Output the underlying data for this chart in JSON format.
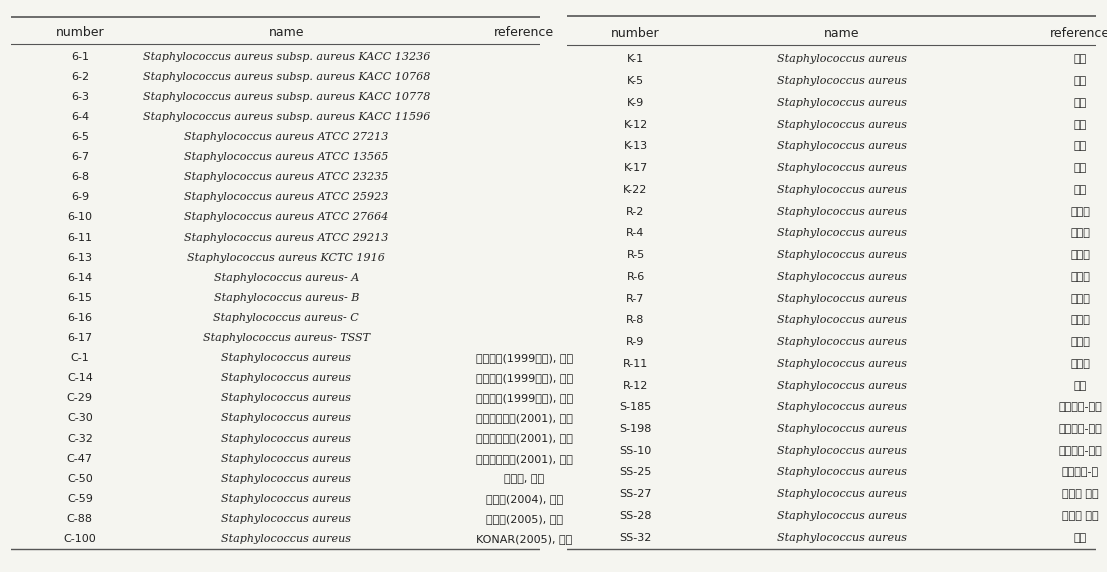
{
  "left_table": {
    "headers": [
      "number",
      "name",
      "reference"
    ],
    "rows": [
      [
        "6-1",
        "Staphylococcus aureus subsp. aureus KACC 13236",
        ""
      ],
      [
        "6-2",
        "Staphylococcus aureus subsp. aureus KACC 10768",
        ""
      ],
      [
        "6-3",
        "Staphylococcus aureus subsp. aureus KACC 10778",
        ""
      ],
      [
        "6-4",
        "Staphylococcus aureus subsp. aureus KACC 11596",
        ""
      ],
      [
        "6-5",
        "Staphylococcus aureus ATCC 27213",
        ""
      ],
      [
        "6-7",
        "Staphylococcus aureus ATCC 13565",
        ""
      ],
      [
        "6-8",
        "Staphylococcus aureus ATCC 23235",
        ""
      ],
      [
        "6-9",
        "Staphylococcus aureus ATCC 25923",
        ""
      ],
      [
        "6-10",
        "Staphylococcus aureus ATCC 27664",
        ""
      ],
      [
        "6-11",
        "Staphylococcus aureus ATCC 29213",
        ""
      ],
      [
        "6-13",
        "Staphylococcus aureus KCTC 1916",
        ""
      ],
      [
        "6-14",
        "Staphylococcus aureus- A",
        ""
      ],
      [
        "6-15",
        "Staphylococcus aureus- B",
        ""
      ],
      [
        "6-16",
        "Staphylococcus aureus- C",
        ""
      ],
      [
        "6-17",
        "Staphylococcus aureus- TSST",
        ""
      ],
      [
        "C-1",
        "Staphylococcus aureus",
        "아산준악(1999이전), 사람"
      ],
      [
        "C-14",
        "Staphylococcus aureus",
        "아산준악(1999이전), 사람"
      ],
      [
        "C-29",
        "Staphylococcus aureus",
        "아산준악(1999이전), 사람"
      ],
      [
        "C-30",
        "Staphylococcus aureus",
        "구루고대병원(2001), 사람"
      ],
      [
        "C-32",
        "Staphylococcus aureus",
        "구루고대병원(2001), 사람"
      ],
      [
        "C-47",
        "Staphylococcus aureus",
        "구루고대병원(2001), 사람"
      ],
      [
        "C-50",
        "Staphylococcus aureus",
        "전록대, 들를"
      ],
      [
        "C-59",
        "Staphylococcus aureus",
        "경록대(2004), 사람"
      ],
      [
        "C-88",
        "Staphylococcus aureus",
        "보건원(2005), 사람"
      ],
      [
        "C-100",
        "Staphylococcus aureus",
        "KONAR(2005), 사람"
      ]
    ]
  },
  "right_table": {
    "headers": [
      "number",
      "name",
      "reference"
    ],
    "rows": [
      [
        "K-1",
        "Staphylococcus aureus",
        "사람"
      ],
      [
        "K-5",
        "Staphylococcus aureus",
        "사람"
      ],
      [
        "K-9",
        "Staphylococcus aureus",
        "사람"
      ],
      [
        "K-12",
        "Staphylococcus aureus",
        "사람"
      ],
      [
        "K-13",
        "Staphylococcus aureus",
        "김밥"
      ],
      [
        "K-17",
        "Staphylococcus aureus",
        "김밥"
      ],
      [
        "K-22",
        "Staphylococcus aureus",
        "김밥"
      ],
      [
        "R-2",
        "Staphylococcus aureus",
        "새지스"
      ],
      [
        "R-4",
        "Staphylococcus aureus",
        "새지스"
      ],
      [
        "R-5",
        "Staphylococcus aureus",
        "새지스"
      ],
      [
        "R-6",
        "Staphylococcus aureus",
        "새지스"
      ],
      [
        "R-7",
        "Staphylococcus aureus",
        "새지스"
      ],
      [
        "R-8",
        "Staphylococcus aureus",
        "새지스"
      ],
      [
        "R-9",
        "Staphylococcus aureus",
        "새지스"
      ],
      [
        "R-11",
        "Staphylococcus aureus",
        "새지스"
      ],
      [
        "R-12",
        "Staphylococcus aureus",
        "땅력"
      ],
      [
        "S-185",
        "Staphylococcus aureus",
        "갓잎놊가-장갑"
      ],
      [
        "S-198",
        "Staphylococcus aureus",
        "갓잎놊가-장갑"
      ],
      [
        "SS-10",
        "Staphylococcus aureus",
        "갓잎놊가-장갑"
      ],
      [
        "SS-25",
        "Staphylococcus aureus",
        "갓잎놊가-스"
      ],
      [
        "SS-27",
        "Staphylococcus aureus",
        "포장토 갓잎"
      ],
      [
        "SS-28",
        "Staphylococcus aureus",
        "포장토 갓잎"
      ],
      [
        "SS-32",
        "Staphylococcus aureus",
        "노름"
      ]
    ]
  },
  "bg_color": "#f5f5f0",
  "header_line_color": "#555555",
  "row_line_color": "#bbbbbb",
  "text_color": "#222222",
  "header_fontsize": 9,
  "body_fontsize": 8
}
